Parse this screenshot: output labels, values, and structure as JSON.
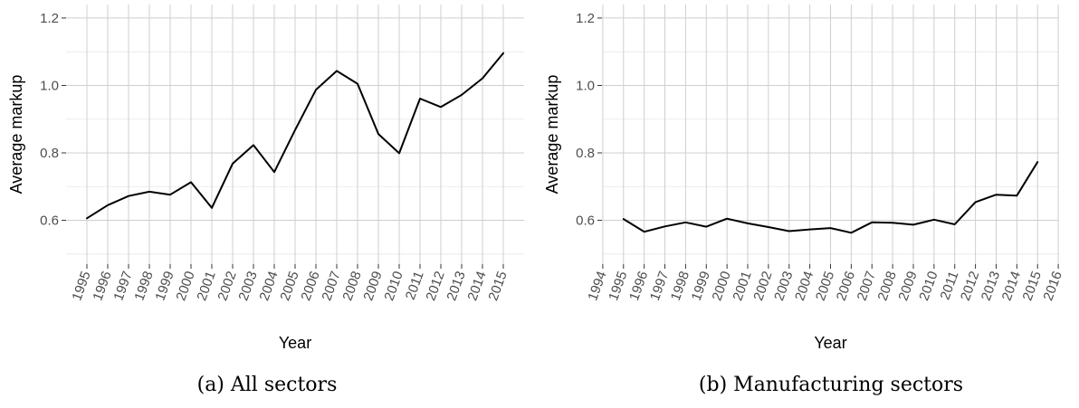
{
  "chart_data": [
    {
      "type": "line",
      "caption": "(a) All sectors",
      "xlabel": "Year",
      "ylabel": "Average markup",
      "xlim": [
        1994,
        2016
      ],
      "ylim": [
        0.47,
        1.24
      ],
      "x_ticks": [
        1995,
        1996,
        1997,
        1998,
        1999,
        2000,
        2001,
        2002,
        2003,
        2004,
        2005,
        2006,
        2007,
        2008,
        2009,
        2010,
        2011,
        2012,
        2013,
        2014,
        2015
      ],
      "y_ticks": [
        0.6,
        0.8,
        1.0,
        1.2
      ],
      "y_tick_labels": [
        "0.6",
        "0.8",
        "1.0",
        "1.2"
      ],
      "grid": true,
      "x": [
        1995,
        1996,
        1997,
        1998,
        1999,
        2000,
        2001,
        2002,
        2003,
        2004,
        2005,
        2006,
        2007,
        2008,
        2009,
        2010,
        2011,
        2012,
        2013,
        2014,
        2015
      ],
      "series": [
        {
          "color": "#000000",
          "values": [
            0.606,
            0.645,
            0.672,
            0.685,
            0.676,
            0.713,
            0.637,
            0.768,
            0.823,
            0.743,
            0.868,
            0.987,
            1.043,
            1.005,
            0.856,
            0.799,
            0.961,
            0.936,
            0.972,
            1.021,
            1.096
          ]
        }
      ]
    },
    {
      "type": "line",
      "caption": "(b) Manufacturing sectors",
      "xlabel": "Year",
      "ylabel": "Average markup",
      "xlim": [
        1993.96,
        2016.04
      ],
      "ylim": [
        0.47,
        1.24
      ],
      "x_ticks": [
        1994,
        1995,
        1996,
        1997,
        1998,
        1999,
        2000,
        2001,
        2002,
        2003,
        2004,
        2005,
        2006,
        2007,
        2008,
        2009,
        2010,
        2011,
        2012,
        2013,
        2014,
        2015,
        2016
      ],
      "y_ticks": [
        0.6,
        0.8,
        1.0,
        1.2
      ],
      "y_tick_labels": [
        "0.6",
        "0.8",
        "1.0",
        "1.2"
      ],
      "grid": true,
      "x": [
        1995,
        1996,
        1997,
        1998,
        1999,
        2000,
        2001,
        2002,
        2003,
        2004,
        2005,
        2006,
        2007,
        2008,
        2009,
        2010,
        2011,
        2012,
        2013,
        2014,
        2015
      ],
      "series": [
        {
          "color": "#000000",
          "values": [
            0.604,
            0.566,
            0.582,
            0.594,
            0.581,
            0.605,
            0.591,
            0.58,
            0.568,
            0.573,
            0.577,
            0.563,
            0.594,
            0.593,
            0.587,
            0.602,
            0.588,
            0.654,
            0.676,
            0.673,
            0.773
          ]
        }
      ]
    }
  ]
}
